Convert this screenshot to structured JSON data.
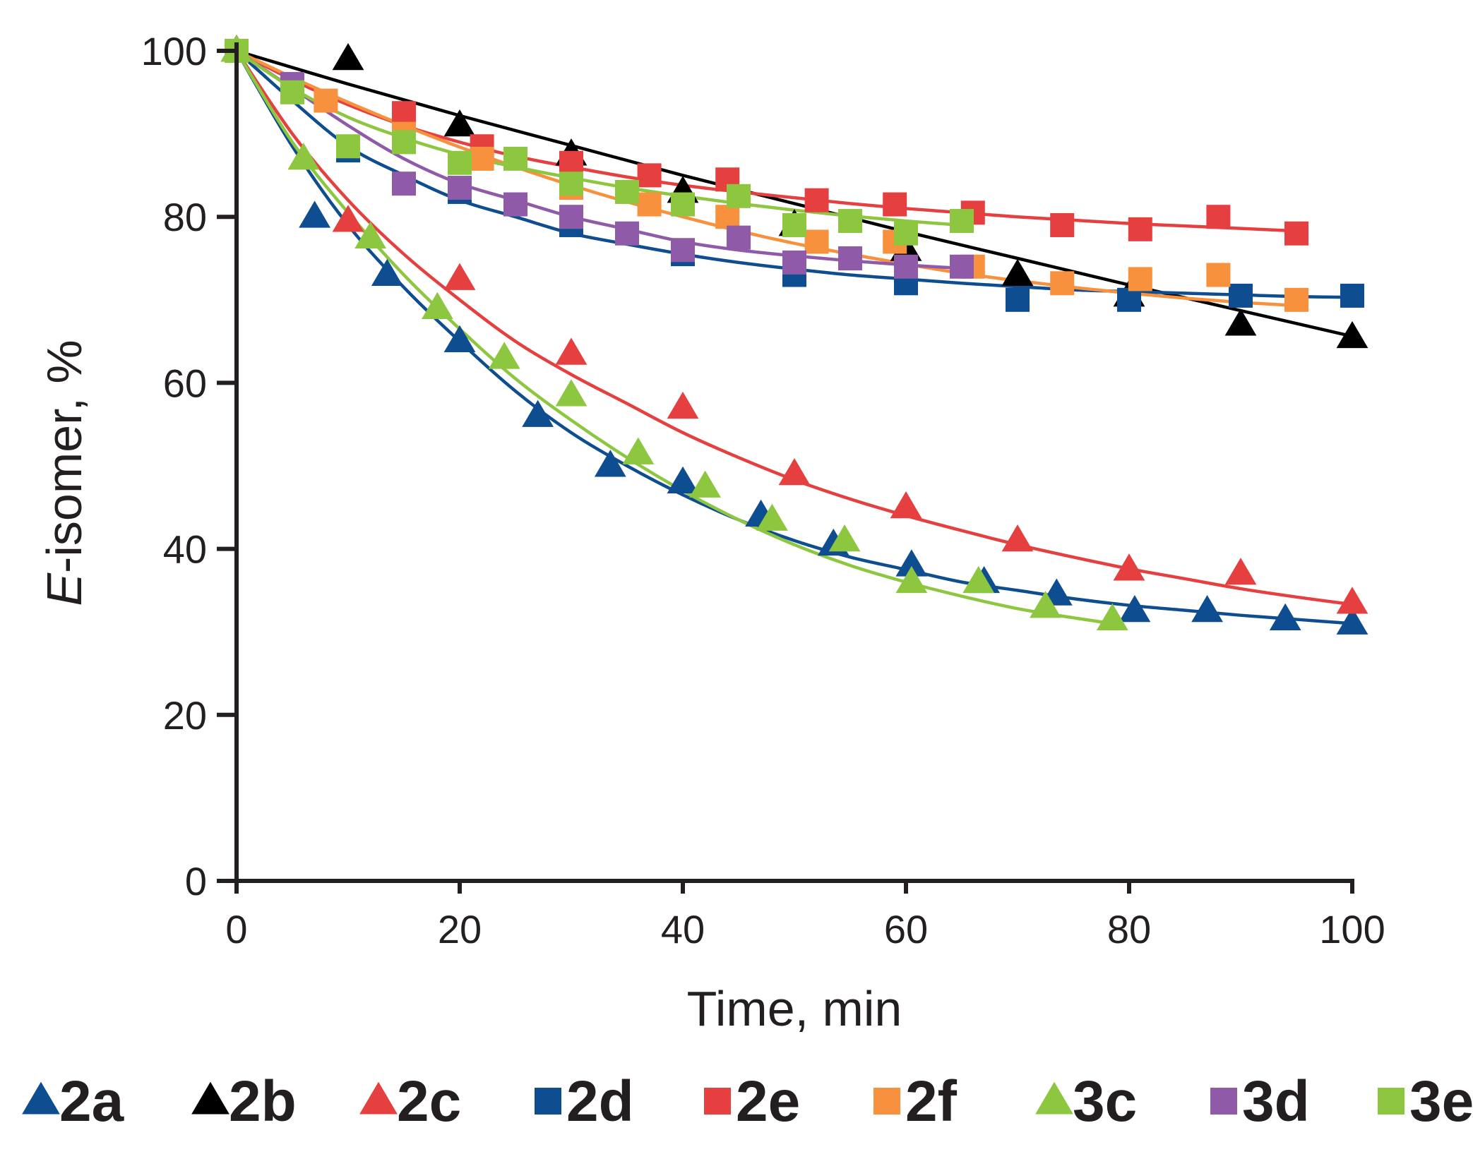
{
  "chart_data": {
    "type": "scatter",
    "title": "",
    "xlabel": "Time, min",
    "ylabel_italic": "E",
    "ylabel_rest": "-isomer, %",
    "xlim": [
      0,
      100
    ],
    "ylim": [
      0,
      100
    ],
    "x_ticks": [
      0,
      20,
      40,
      60,
      80,
      100
    ],
    "y_ticks": [
      0,
      20,
      40,
      60,
      80,
      100
    ],
    "x_tick_labels": [
      "0",
      "20",
      "40",
      "60",
      "80",
      "100"
    ],
    "y_tick_labels": [
      "0",
      "20",
      "40",
      "60",
      "80",
      "100"
    ],
    "legend_position": "bottom",
    "series": [
      {
        "name": "2a",
        "color": "#0e4d8f",
        "marker": "triangle",
        "points": [
          [
            0,
            100
          ],
          [
            7,
            80
          ],
          [
            13.5,
            73
          ],
          [
            20,
            65
          ],
          [
            27,
            56
          ],
          [
            33.5,
            50
          ],
          [
            40,
            48
          ],
          [
            47,
            44
          ],
          [
            53.5,
            40.5
          ],
          [
            60.5,
            38
          ],
          [
            67,
            36
          ],
          [
            73.5,
            34.5
          ],
          [
            80.5,
            32.5
          ],
          [
            87,
            32.5
          ],
          [
            94,
            31.5
          ],
          [
            100,
            31
          ]
        ],
        "fit": [
          [
            0,
            100
          ],
          [
            5,
            88.5
          ],
          [
            10,
            79
          ],
          [
            15,
            71.5
          ],
          [
            20,
            65
          ],
          [
            25,
            59
          ],
          [
            30,
            54
          ],
          [
            35,
            50
          ],
          [
            40,
            46.5
          ],
          [
            45,
            43.5
          ],
          [
            50,
            41
          ],
          [
            55,
            39
          ],
          [
            60,
            37.5
          ],
          [
            65,
            36
          ],
          [
            70,
            35
          ],
          [
            75,
            34
          ],
          [
            80,
            33.2
          ],
          [
            85,
            32.6
          ],
          [
            90,
            32
          ],
          [
            95,
            31.5
          ],
          [
            100,
            31
          ]
        ]
      },
      {
        "name": "2b",
        "color": "#000000",
        "marker": "triangle",
        "points": [
          [
            0,
            100
          ],
          [
            10,
            99
          ],
          [
            20,
            91
          ],
          [
            30,
            87.5
          ],
          [
            40,
            83
          ],
          [
            50,
            79
          ],
          [
            60,
            76
          ],
          [
            70,
            73
          ],
          [
            80,
            70.5
          ],
          [
            90,
            67
          ],
          [
            100,
            65.5
          ]
        ],
        "fit": [
          [
            0,
            100
          ],
          [
            10,
            96
          ],
          [
            20,
            92.2
          ],
          [
            30,
            88.6
          ],
          [
            40,
            85
          ],
          [
            50,
            81.6
          ],
          [
            60,
            78.2
          ],
          [
            70,
            75
          ],
          [
            80,
            71.8
          ],
          [
            90,
            68.7
          ],
          [
            100,
            65.6
          ]
        ]
      },
      {
        "name": "2c",
        "color": "#e5403f",
        "marker": "triangle",
        "points": [
          [
            0,
            100
          ],
          [
            10,
            79.5
          ],
          [
            20,
            72.5
          ],
          [
            30,
            63.5
          ],
          [
            40,
            57
          ],
          [
            50,
            49
          ],
          [
            60,
            45
          ],
          [
            70,
            41
          ],
          [
            80,
            37.5
          ],
          [
            90,
            37
          ],
          [
            100,
            33.5
          ]
        ],
        "fit": [
          [
            0,
            100
          ],
          [
            5,
            90
          ],
          [
            10,
            82
          ],
          [
            15,
            75.5
          ],
          [
            20,
            70
          ],
          [
            25,
            65
          ],
          [
            30,
            61
          ],
          [
            35,
            57.5
          ],
          [
            40,
            54
          ],
          [
            45,
            51
          ],
          [
            50,
            48.3
          ],
          [
            55,
            46
          ],
          [
            60,
            44
          ],
          [
            65,
            42.2
          ],
          [
            70,
            40.5
          ],
          [
            75,
            39
          ],
          [
            80,
            37.6
          ],
          [
            85,
            36.4
          ],
          [
            90,
            35.2
          ],
          [
            95,
            34.2
          ],
          [
            100,
            33.3
          ]
        ]
      },
      {
        "name": "2d",
        "color": "#0e4d8f",
        "marker": "square",
        "points": [
          [
            0,
            100
          ],
          [
            10,
            88
          ],
          [
            20,
            83
          ],
          [
            30,
            79
          ],
          [
            40,
            75.5
          ],
          [
            50,
            73
          ],
          [
            60,
            72
          ],
          [
            70,
            70
          ],
          [
            80,
            70
          ],
          [
            90,
            70.5
          ],
          [
            100,
            70.5
          ]
        ],
        "fit": [
          [
            0,
            100
          ],
          [
            5,
            94
          ],
          [
            10,
            88.5
          ],
          [
            15,
            85
          ],
          [
            20,
            82
          ],
          [
            25,
            80
          ],
          [
            30,
            78
          ],
          [
            35,
            76.7
          ],
          [
            40,
            75.5
          ],
          [
            45,
            74.5
          ],
          [
            50,
            73.7
          ],
          [
            55,
            73
          ],
          [
            60,
            72.5
          ],
          [
            65,
            72
          ],
          [
            70,
            71.6
          ],
          [
            75,
            71.2
          ],
          [
            80,
            71
          ],
          [
            85,
            70.8
          ],
          [
            90,
            70.6
          ],
          [
            95,
            70.4
          ],
          [
            100,
            70.3
          ]
        ]
      },
      {
        "name": "2e",
        "color": "#e5403f",
        "marker": "square",
        "points": [
          [
            0,
            100
          ],
          [
            15,
            92.5
          ],
          [
            22,
            88.5
          ],
          [
            30,
            86.5
          ],
          [
            37,
            85
          ],
          [
            44,
            84.5
          ],
          [
            52,
            82
          ],
          [
            59,
            81.5
          ],
          [
            66,
            80.5
          ],
          [
            74,
            79
          ],
          [
            81,
            78.5
          ],
          [
            88,
            80
          ],
          [
            95,
            78
          ]
        ],
        "fit": [
          [
            0,
            100
          ],
          [
            5,
            96.5
          ],
          [
            10,
            93.5
          ],
          [
            15,
            91
          ],
          [
            20,
            89
          ],
          [
            25,
            87.3
          ],
          [
            30,
            86
          ],
          [
            35,
            84.8
          ],
          [
            40,
            83.8
          ],
          [
            45,
            83
          ],
          [
            50,
            82.3
          ],
          [
            55,
            81.6
          ],
          [
            60,
            81
          ],
          [
            65,
            80.5
          ],
          [
            70,
            80
          ],
          [
            75,
            79.6
          ],
          [
            80,
            79.2
          ],
          [
            85,
            78.9
          ],
          [
            90,
            78.6
          ],
          [
            95,
            78.3
          ]
        ]
      },
      {
        "name": "2f",
        "color": "#f7913d",
        "marker": "square",
        "points": [
          [
            0,
            100
          ],
          [
            8,
            94
          ],
          [
            15,
            90
          ],
          [
            22,
            87
          ],
          [
            30,
            83.5
          ],
          [
            37,
            81.5
          ],
          [
            44,
            80
          ],
          [
            52,
            77
          ],
          [
            59,
            77
          ],
          [
            66,
            74
          ],
          [
            74,
            72
          ],
          [
            81,
            72.5
          ],
          [
            88,
            73
          ],
          [
            95,
            70
          ]
        ],
        "fit": [
          [
            0,
            100
          ],
          [
            5,
            96.8
          ],
          [
            10,
            93.8
          ],
          [
            15,
            91
          ],
          [
            20,
            88.4
          ],
          [
            25,
            86
          ],
          [
            30,
            83.8
          ],
          [
            35,
            81.8
          ],
          [
            40,
            80
          ],
          [
            45,
            78.3
          ],
          [
            50,
            76.8
          ],
          [
            55,
            75.5
          ],
          [
            60,
            74.3
          ],
          [
            65,
            73.2
          ],
          [
            70,
            72.3
          ],
          [
            75,
            71.5
          ],
          [
            80,
            70.8
          ],
          [
            85,
            70.2
          ],
          [
            90,
            69.7
          ],
          [
            95,
            69.3
          ]
        ]
      },
      {
        "name": "3c",
        "color": "#8dc63f",
        "marker": "triangle",
        "points": [
          [
            0,
            100
          ],
          [
            6,
            87
          ],
          [
            12,
            77.5
          ],
          [
            18,
            69
          ],
          [
            24,
            63
          ],
          [
            30,
            58.5
          ],
          [
            36,
            51.5
          ],
          [
            42,
            47.5
          ],
          [
            48,
            43.5
          ],
          [
            54.5,
            41
          ],
          [
            60.5,
            36
          ],
          [
            66.5,
            36
          ],
          [
            72.5,
            33
          ],
          [
            78.5,
            31.5
          ]
        ],
        "fit": [
          [
            0,
            100
          ],
          [
            5,
            89
          ],
          [
            10,
            80.5
          ],
          [
            15,
            73
          ],
          [
            20,
            66.5
          ],
          [
            25,
            60.5
          ],
          [
            30,
            55.5
          ],
          [
            35,
            51
          ],
          [
            40,
            47
          ],
          [
            45,
            43.5
          ],
          [
            50,
            40.5
          ],
          [
            55,
            38
          ],
          [
            60,
            36
          ],
          [
            65,
            34.3
          ],
          [
            70,
            32.8
          ],
          [
            75,
            31.7
          ],
          [
            78.5,
            31
          ]
        ]
      },
      {
        "name": "3d",
        "color": "#8f5aa8",
        "marker": "square",
        "points": [
          [
            0,
            100
          ],
          [
            5,
            96
          ],
          [
            15,
            84
          ],
          [
            20,
            83.5
          ],
          [
            25,
            81.5
          ],
          [
            30,
            80
          ],
          [
            35,
            78
          ],
          [
            40,
            76
          ],
          [
            45,
            77.5
          ],
          [
            50,
            74.5
          ],
          [
            55,
            75
          ],
          [
            60,
            74
          ],
          [
            65,
            74
          ]
        ],
        "fit": [
          [
            0,
            100
          ],
          [
            5,
            95.5
          ],
          [
            10,
            91
          ],
          [
            15,
            87
          ],
          [
            20,
            84
          ],
          [
            25,
            82
          ],
          [
            30,
            80
          ],
          [
            35,
            78.5
          ],
          [
            40,
            77
          ],
          [
            45,
            76
          ],
          [
            50,
            75.3
          ],
          [
            55,
            74.7
          ],
          [
            60,
            74.2
          ],
          [
            65,
            73.8
          ]
        ]
      },
      {
        "name": "3e",
        "color": "#8dc63f",
        "marker": "square",
        "points": [
          [
            0,
            100
          ],
          [
            5,
            95
          ],
          [
            10,
            88.5
          ],
          [
            15,
            89
          ],
          [
            20,
            86.5
          ],
          [
            25,
            87
          ],
          [
            30,
            84
          ],
          [
            35,
            83
          ],
          [
            40,
            81.5
          ],
          [
            45,
            82.5
          ],
          [
            50,
            79
          ],
          [
            55,
            79.5
          ],
          [
            60,
            78
          ],
          [
            65,
            79.5
          ]
        ],
        "fit": [
          [
            0,
            100
          ],
          [
            5,
            95.5
          ],
          [
            10,
            92
          ],
          [
            15,
            89.5
          ],
          [
            20,
            87.5
          ],
          [
            25,
            86
          ],
          [
            30,
            84.7
          ],
          [
            35,
            83.5
          ],
          [
            40,
            82.5
          ],
          [
            45,
            81.6
          ],
          [
            50,
            80.8
          ],
          [
            55,
            80.1
          ],
          [
            60,
            79.5
          ],
          [
            65,
            79
          ]
        ]
      }
    ]
  }
}
